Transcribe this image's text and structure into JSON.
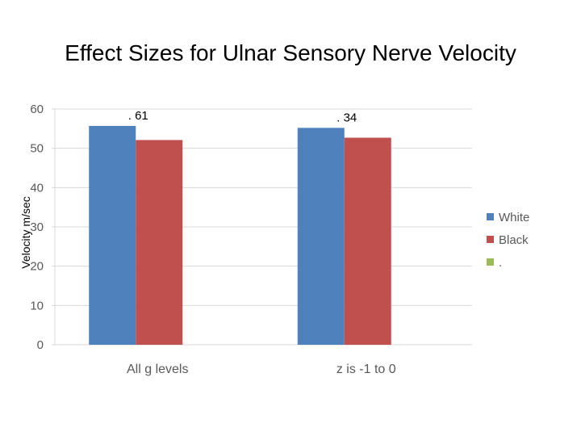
{
  "chart_data": {
    "type": "bar",
    "title": "Effect Sizes for Ulnar Sensory Nerve Velocity",
    "xlabel": "",
    "ylabel": "Velocity m/sec",
    "ylim": [
      0,
      60
    ],
    "yticks": [
      0,
      10,
      20,
      30,
      40,
      50,
      60
    ],
    "categories": [
      "All g levels",
      "z is -1 to 0"
    ],
    "series": [
      {
        "name": "White",
        "values": [
          55.7,
          55.2
        ],
        "color": "#4F81BD"
      },
      {
        "name": "Black",
        "values": [
          52.1,
          52.7
        ],
        "color": "#C0504D"
      },
      {
        "name": ".",
        "values": [
          0,
          0
        ],
        "color": "#9BBB59"
      }
    ],
    "annotations": [
      ". 61",
      ". 34"
    ],
    "grid": true,
    "legend_position": "right"
  }
}
